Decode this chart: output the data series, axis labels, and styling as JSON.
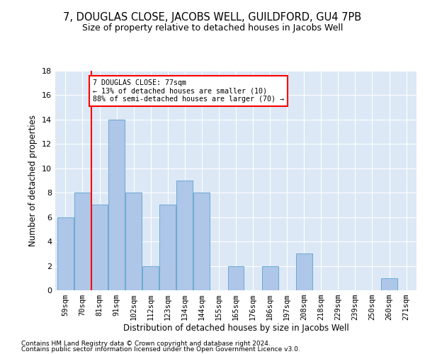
{
  "title": "7, DOUGLAS CLOSE, JACOBS WELL, GUILDFORD, GU4 7PB",
  "subtitle": "Size of property relative to detached houses in Jacobs Well",
  "xlabel": "Distribution of detached houses by size in Jacobs Well",
  "ylabel": "Number of detached properties",
  "categories": [
    "59sqm",
    "70sqm",
    "81sqm",
    "91sqm",
    "102sqm",
    "112sqm",
    "123sqm",
    "134sqm",
    "144sqm",
    "155sqm",
    "165sqm",
    "176sqm",
    "186sqm",
    "197sqm",
    "208sqm",
    "218sqm",
    "229sqm",
    "239sqm",
    "250sqm",
    "260sqm",
    "271sqm"
  ],
  "values": [
    6,
    8,
    7,
    14,
    8,
    2,
    7,
    9,
    8,
    0,
    2,
    0,
    2,
    0,
    3,
    0,
    0,
    0,
    0,
    1,
    0
  ],
  "bar_color": "#aec6e8",
  "bar_edge_color": "#6aaad4",
  "background_color": "#dce8f5",
  "annotation_line1": "7 DOUGLAS CLOSE: 77sqm",
  "annotation_line2": "← 13% of detached houses are smaller (10)",
  "annotation_line3": "88% of semi-detached houses are larger (70) →",
  "vline_x_index": 1.5,
  "ylim": [
    0,
    18
  ],
  "yticks": [
    0,
    2,
    4,
    6,
    8,
    10,
    12,
    14,
    16,
    18
  ],
  "footnote1": "Contains HM Land Registry data © Crown copyright and database right 2024.",
  "footnote2": "Contains public sector information licensed under the Open Government Licence v3.0."
}
